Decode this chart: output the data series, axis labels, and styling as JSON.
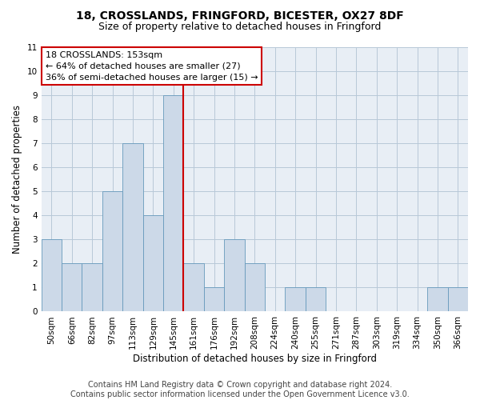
{
  "title1": "18, CROSSLANDS, FRINGFORD, BICESTER, OX27 8DF",
  "title2": "Size of property relative to detached houses in Fringford",
  "xlabel": "Distribution of detached houses by size in Fringford",
  "ylabel": "Number of detached properties",
  "categories": [
    "50sqm",
    "66sqm",
    "82sqm",
    "97sqm",
    "113sqm",
    "129sqm",
    "145sqm",
    "161sqm",
    "176sqm",
    "192sqm",
    "208sqm",
    "224sqm",
    "240sqm",
    "255sqm",
    "271sqm",
    "287sqm",
    "303sqm",
    "319sqm",
    "334sqm",
    "350sqm",
    "366sqm"
  ],
  "values": [
    3,
    2,
    2,
    5,
    7,
    4,
    9,
    2,
    1,
    3,
    2,
    0,
    1,
    1,
    0,
    0,
    0,
    0,
    0,
    1,
    1
  ],
  "bar_color": "#ccd9e8",
  "bar_edge_color": "#6699bb",
  "vline_color": "#cc0000",
  "annotation_text": "18 CROSSLANDS: 153sqm\n← 64% of detached houses are smaller (27)\n36% of semi-detached houses are larger (15) →",
  "annotation_box_color": "#ffffff",
  "annotation_box_edge": "#cc0000",
  "ylim": [
    0,
    11
  ],
  "yticks": [
    0,
    1,
    2,
    3,
    4,
    5,
    6,
    7,
    8,
    9,
    10,
    11
  ],
  "footer": "Contains HM Land Registry data © Crown copyright and database right 2024.\nContains public sector information licensed under the Open Government Licence v3.0.",
  "bg_color": "#ffffff",
  "plot_bg_color": "#e8eef5",
  "grid_color": "#b8c8d8",
  "title_fontsize": 10,
  "subtitle_fontsize": 9,
  "axis_label_fontsize": 8.5,
  "tick_fontsize": 7.5,
  "annotation_fontsize": 8,
  "footer_fontsize": 7
}
